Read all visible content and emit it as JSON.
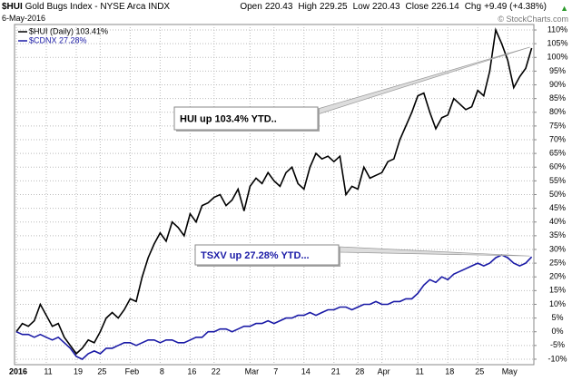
{
  "header": {
    "symbol": "$HUI",
    "name": "Gold Bugs Index - NYSE Arca INDX",
    "date": "6-May-2016",
    "stats": [
      {
        "label": "Open",
        "value": 220.43
      },
      {
        "label": "High",
        "value": 229.25
      },
      {
        "label": "Low",
        "value": 220.43
      },
      {
        "label": "Close",
        "value": 226.14
      },
      {
        "label": "Chg",
        "value": "+9.49 (+4.38%)"
      }
    ],
    "credit": "© StockCharts.com"
  },
  "chart_data": {
    "type": "line",
    "categories": [
      "2016",
      null,
      null,
      null,
      null,
      "11",
      null,
      null,
      null,
      null,
      "19",
      null,
      null,
      null,
      "25",
      null,
      null,
      null,
      null,
      "Feb",
      null,
      null,
      null,
      null,
      "8",
      null,
      null,
      null,
      null,
      "16",
      null,
      null,
      null,
      "22",
      null,
      null,
      null,
      null,
      null,
      "Mar",
      null,
      null,
      null,
      "7",
      null,
      null,
      null,
      null,
      "14",
      null,
      null,
      null,
      null,
      "21",
      null,
      null,
      null,
      "28",
      null,
      null,
      null,
      "Apr",
      null,
      null,
      null,
      null,
      null,
      "11",
      null,
      null,
      null,
      null,
      "18",
      null,
      null,
      null,
      null,
      "25",
      null,
      null,
      null,
      null,
      "May",
      null,
      null,
      null,
      null
    ],
    "series": [
      {
        "name": "$HUI (Daily) 103.41%",
        "color": "#000000",
        "values": [
          0,
          3,
          2,
          4,
          10,
          6,
          2,
          3,
          -2,
          -5,
          -8,
          -6,
          -3,
          -4,
          0,
          5,
          7,
          5,
          8,
          12,
          11,
          20,
          27,
          32,
          36,
          33,
          40,
          38,
          35,
          43,
          40,
          46,
          47,
          49,
          50,
          46,
          48,
          52,
          44,
          53,
          56,
          54,
          58,
          55,
          53,
          58,
          60,
          54,
          52,
          60,
          65,
          63,
          64,
          62,
          64,
          50,
          53,
          52,
          60,
          56,
          57,
          58,
          62,
          63,
          70,
          75,
          80,
          86,
          87,
          80,
          74,
          78,
          79,
          85,
          83,
          81,
          82,
          88,
          86,
          95,
          110,
          105,
          99,
          89,
          93,
          96,
          103.41
        ]
      },
      {
        "name": "$CDNX 27.28%",
        "color": "#1a1aa6",
        "values": [
          0,
          -1,
          -1,
          -2,
          -1,
          -2,
          -3,
          -2,
          -4,
          -6,
          -9,
          -10,
          -8,
          -7,
          -8,
          -6,
          -6,
          -5,
          -4,
          -4,
          -5,
          -4,
          -3,
          -3,
          -4,
          -3,
          -3,
          -4,
          -4,
          -3,
          -2,
          -2,
          0,
          0,
          1,
          1,
          0,
          1,
          2,
          2,
          3,
          3,
          4,
          3,
          4,
          5,
          5,
          6,
          6,
          7,
          6,
          7,
          8,
          8,
          9,
          9,
          8,
          9,
          10,
          10,
          11,
          10,
          10,
          11,
          11,
          12,
          12,
          14,
          17,
          19,
          18,
          20,
          19,
          21,
          22,
          23,
          24,
          25,
          24,
          25,
          27,
          28,
          27,
          25,
          24,
          25,
          27.28
        ]
      }
    ],
    "annotations": [
      "HUI up 103.4% YTD..",
      "TSXV up 27.28% YTD..."
    ],
    "ylim": [
      -12,
      112
    ],
    "yticks": [
      {
        "value": -10,
        "label": "-10%"
      },
      {
        "value": -5,
        "label": "-5%"
      },
      {
        "value": 0,
        "label": "0%"
      },
      {
        "value": 5,
        "label": "5%"
      },
      {
        "value": 10,
        "label": "10%"
      },
      {
        "value": 15,
        "label": "15%"
      },
      {
        "value": 20,
        "label": "20%"
      },
      {
        "value": 25,
        "label": "25%"
      },
      {
        "value": 30,
        "label": "30%"
      },
      {
        "value": 35,
        "label": "35%"
      },
      {
        "value": 40,
        "label": "40%"
      },
      {
        "value": 45,
        "label": "45%"
      },
      {
        "value": 50,
        "label": "50%"
      },
      {
        "value": 55,
        "label": "55%"
      },
      {
        "value": 60,
        "label": "60%"
      },
      {
        "value": 65,
        "label": "65%"
      },
      {
        "value": 70,
        "label": "70%"
      },
      {
        "value": 75,
        "label": "75%"
      },
      {
        "value": 80,
        "label": "80%"
      },
      {
        "value": 85,
        "label": "85%"
      },
      {
        "value": 90,
        "label": "90%"
      },
      {
        "value": 95,
        "label": "95%"
      },
      {
        "value": 100,
        "label": "100%"
      },
      {
        "value": 105,
        "label": "105%"
      },
      {
        "value": 110,
        "label": "110%"
      }
    ],
    "grid": true
  }
}
